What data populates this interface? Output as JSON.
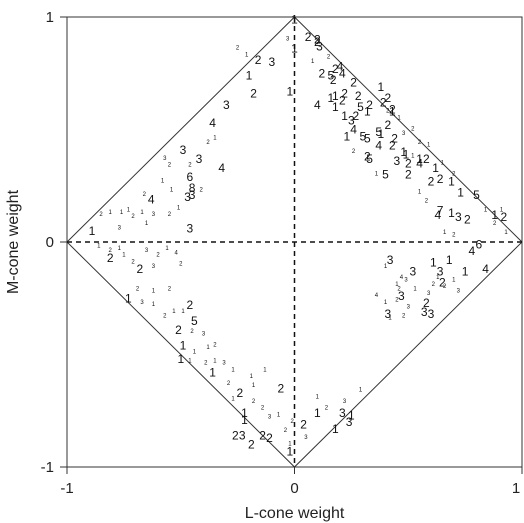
{
  "chart_data": {
    "type": "scatter",
    "xlabel": "L-cone weight",
    "ylabel": "M-cone weight",
    "xlim": [
      -1,
      1
    ],
    "ylim": [
      -1,
      1
    ],
    "xticks": [
      "-1",
      "0",
      "1"
    ],
    "yticks": [
      "-1",
      "0",
      "1"
    ],
    "reference_lines": {
      "diamond": "|L| + |M| = 1",
      "dashed_axes": "x=0, y=0"
    },
    "points_large": [
      {
        "x": 0.0,
        "y": 0.99,
        "label": "1"
      },
      {
        "x": 0.06,
        "y": 0.91,
        "label": "2"
      },
      {
        "x": 0.11,
        "y": 0.87,
        "label": "3"
      },
      {
        "x": 0.1,
        "y": 0.9,
        "label": "2"
      },
      {
        "x": 0.0,
        "y": 0.86,
        "label": "1"
      },
      {
        "x": -0.1,
        "y": 0.8,
        "label": "3"
      },
      {
        "x": -0.16,
        "y": 0.81,
        "label": "2"
      },
      {
        "x": -0.2,
        "y": 0.74,
        "label": "1"
      },
      {
        "x": -0.18,
        "y": 0.66,
        "label": "2"
      },
      {
        "x": -0.3,
        "y": 0.61,
        "label": "3"
      },
      {
        "x": -0.36,
        "y": 0.53,
        "label": "4"
      },
      {
        "x": -0.02,
        "y": 0.67,
        "label": "1"
      },
      {
        "x": 0.1,
        "y": 0.61,
        "label": "4"
      },
      {
        "x": 0.17,
        "y": 0.72,
        "label": "2"
      },
      {
        "x": 0.28,
        "y": 0.65,
        "label": "2"
      },
      {
        "x": 0.38,
        "y": 0.69,
        "label": "1"
      },
      {
        "x": 0.41,
        "y": 0.64,
        "label": "2"
      },
      {
        "x": 0.43,
        "y": 0.58,
        "label": "1"
      },
      {
        "x": 0.38,
        "y": 0.48,
        "label": "1"
      },
      {
        "x": 0.43,
        "y": 0.43,
        "label": "2"
      },
      {
        "x": 0.48,
        "y": 0.4,
        "label": "1"
      },
      {
        "x": 0.5,
        "y": 0.35,
        "label": "2"
      },
      {
        "x": 0.58,
        "y": 0.37,
        "label": "2"
      },
      {
        "x": 0.62,
        "y": 0.33,
        "label": "1"
      },
      {
        "x": 0.6,
        "y": 0.27,
        "label": "2"
      },
      {
        "x": 0.69,
        "y": 0.27,
        "label": "1"
      },
      {
        "x": 0.73,
        "y": 0.22,
        "label": "1"
      },
      {
        "x": 0.8,
        "y": 0.21,
        "label": "5"
      },
      {
        "x": 0.92,
        "y": 0.11,
        "label": "2"
      },
      {
        "x": 0.88,
        "y": 0.12,
        "label": "1"
      },
      {
        "x": 0.69,
        "y": 0.13,
        "label": "1"
      },
      {
        "x": 0.64,
        "y": 0.14,
        "label": "7"
      },
      {
        "x": 0.76,
        "y": 0.1,
        "label": "2"
      },
      {
        "x": 0.26,
        "y": 0.5,
        "label": "4"
      },
      {
        "x": 0.23,
        "y": 0.47,
        "label": "1"
      },
      {
        "x": 0.3,
        "y": 0.47,
        "label": "5"
      },
      {
        "x": 0.37,
        "y": 0.43,
        "label": "4"
      },
      {
        "x": 0.33,
        "y": 0.37,
        "label": "5"
      },
      {
        "x": 0.49,
        "y": 0.39,
        "label": "1"
      },
      {
        "x": 0.18,
        "y": 0.6,
        "label": "1"
      },
      {
        "x": 0.4,
        "y": 0.3,
        "label": "5"
      },
      {
        "x": 0.32,
        "y": 0.38,
        "label": "2"
      },
      {
        "x": 0.63,
        "y": 0.12,
        "label": "4"
      },
      {
        "x": 0.72,
        "y": 0.11,
        "label": "3"
      },
      {
        "x": 0.5,
        "y": 0.3,
        "label": "2"
      },
      {
        "x": 0.55,
        "y": 0.37,
        "label": "1"
      },
      {
        "x": 0.64,
        "y": 0.28,
        "label": "2"
      },
      {
        "x": 0.25,
        "y": 0.54,
        "label": "3"
      },
      {
        "x": 0.22,
        "y": 0.56,
        "label": "1"
      },
      {
        "x": 0.27,
        "y": 0.56,
        "label": "2"
      },
      {
        "x": 0.32,
        "y": 0.58,
        "label": "1"
      },
      {
        "x": 0.55,
        "y": 0.35,
        "label": "4"
      },
      {
        "x": 0.44,
        "y": 0.46,
        "label": "2"
      },
      {
        "x": 0.37,
        "y": 0.49,
        "label": "5"
      },
      {
        "x": 0.21,
        "y": 0.63,
        "label": "2"
      },
      {
        "x": 0.18,
        "y": 0.65,
        "label": "1"
      },
      {
        "x": 0.12,
        "y": 0.75,
        "label": "2"
      },
      {
        "x": 0.16,
        "y": 0.74,
        "label": "5"
      },
      {
        "x": 0.21,
        "y": 0.75,
        "label": "4"
      },
      {
        "x": 0.32,
        "y": 0.46,
        "label": "5"
      },
      {
        "x": 0.45,
        "y": 0.36,
        "label": "3"
      },
      {
        "x": 0.1,
        "y": 0.89,
        "label": "2"
      },
      {
        "x": 0.18,
        "y": 0.77,
        "label": "2"
      },
      {
        "x": 0.2,
        "y": 0.78,
        "label": "4"
      },
      {
        "x": 0.26,
        "y": 0.71,
        "label": "2"
      },
      {
        "x": 0.33,
        "y": 0.61,
        "label": "2"
      },
      {
        "x": 0.16,
        "y": 0.64,
        "label": "1"
      },
      {
        "x": 0.22,
        "y": 0.66,
        "label": "2"
      },
      {
        "x": 0.29,
        "y": 0.6,
        "label": "5"
      },
      {
        "x": 0.41,
        "y": 0.52,
        "label": "2"
      },
      {
        "x": 0.39,
        "y": 0.62,
        "label": "2"
      },
      {
        "x": 0.43,
        "y": 0.59,
        "label": "2"
      },
      {
        "x": -0.49,
        "y": 0.41,
        "label": "3"
      },
      {
        "x": -0.42,
        "y": 0.37,
        "label": "3"
      },
      {
        "x": -0.32,
        "y": 0.33,
        "label": "4"
      },
      {
        "x": -0.46,
        "y": 0.29,
        "label": "6"
      },
      {
        "x": -0.45,
        "y": 0.24,
        "label": "8"
      },
      {
        "x": -0.47,
        "y": 0.2,
        "label": "3"
      },
      {
        "x": -0.63,
        "y": 0.19,
        "label": "4"
      },
      {
        "x": -0.45,
        "y": 0.21,
        "label": "3"
      },
      {
        "x": -0.46,
        "y": 0.06,
        "label": "3"
      },
      {
        "x": -0.89,
        "y": 0.05,
        "label": "1"
      },
      {
        "x": -0.81,
        "y": -0.07,
        "label": "2"
      },
      {
        "x": -0.68,
        "y": -0.12,
        "label": "2"
      },
      {
        "x": -0.73,
        "y": -0.25,
        "label": "1"
      },
      {
        "x": -0.46,
        "y": -0.28,
        "label": "2"
      },
      {
        "x": -0.44,
        "y": -0.35,
        "label": "5"
      },
      {
        "x": -0.51,
        "y": -0.39,
        "label": "2"
      },
      {
        "x": -0.49,
        "y": -0.46,
        "label": "1"
      },
      {
        "x": -0.5,
        "y": -0.52,
        "label": "1"
      },
      {
        "x": -0.36,
        "y": -0.58,
        "label": "1"
      },
      {
        "x": -0.24,
        "y": -0.67,
        "label": "2"
      },
      {
        "x": -0.06,
        "y": -0.65,
        "label": "2"
      },
      {
        "x": -0.22,
        "y": -0.79,
        "label": "1"
      },
      {
        "x": -0.23,
        "y": -0.86,
        "label": "3"
      },
      {
        "x": -0.14,
        "y": -0.86,
        "label": "2"
      },
      {
        "x": -0.11,
        "y": -0.87,
        "label": "2"
      },
      {
        "x": -0.19,
        "y": -0.9,
        "label": "2"
      },
      {
        "x": -0.02,
        "y": -0.93,
        "label": "1"
      },
      {
        "x": 0.1,
        "y": -0.76,
        "label": "1"
      },
      {
        "x": 0.21,
        "y": -0.76,
        "label": "3"
      },
      {
        "x": 0.25,
        "y": -0.77,
        "label": "1"
      },
      {
        "x": 0.18,
        "y": -0.83,
        "label": "1"
      },
      {
        "x": 0.24,
        "y": -0.8,
        "label": "3"
      },
      {
        "x": 0.04,
        "y": -0.81,
        "label": "2"
      },
      {
        "x": 0.42,
        "y": -0.08,
        "label": "3"
      },
      {
        "x": 0.52,
        "y": -0.13,
        "label": "3"
      },
      {
        "x": 0.61,
        "y": -0.09,
        "label": "1"
      },
      {
        "x": 0.64,
        "y": -0.13,
        "label": "3"
      },
      {
        "x": 0.68,
        "y": -0.08,
        "label": "1"
      },
      {
        "x": 0.75,
        "y": -0.13,
        "label": "1"
      },
      {
        "x": 0.84,
        "y": -0.12,
        "label": "4"
      },
      {
        "x": 0.78,
        "y": -0.04,
        "label": "4"
      },
      {
        "x": 0.81,
        "y": -0.01,
        "label": "6"
      },
      {
        "x": 0.65,
        "y": -0.18,
        "label": "2"
      },
      {
        "x": 0.47,
        "y": -0.24,
        "label": "3"
      },
      {
        "x": 0.41,
        "y": -0.32,
        "label": "3"
      },
      {
        "x": 0.57,
        "y": -0.31,
        "label": "3"
      },
      {
        "x": 0.58,
        "y": -0.27,
        "label": "2"
      },
      {
        "x": 0.6,
        "y": -0.32,
        "label": "3"
      },
      {
        "x": -0.22,
        "y": -0.76,
        "label": "1"
      },
      {
        "x": -0.26,
        "y": -0.86,
        "label": "2"
      }
    ],
    "points_small": [
      {
        "x": -0.57,
        "y": 0.37,
        "label": "3"
      },
      {
        "x": -0.55,
        "y": 0.34,
        "label": "2"
      },
      {
        "x": -0.58,
        "y": 0.27,
        "label": "1"
      },
      {
        "x": -0.66,
        "y": 0.21,
        "label": "2"
      },
      {
        "x": -0.73,
        "y": 0.14,
        "label": "1"
      },
      {
        "x": -0.76,
        "y": 0.13,
        "label": "1"
      },
      {
        "x": -0.85,
        "y": 0.12,
        "label": "2"
      },
      {
        "x": -0.81,
        "y": 0.13,
        "label": "1"
      },
      {
        "x": -0.77,
        "y": 0.06,
        "label": "3"
      },
      {
        "x": -0.67,
        "y": 0.13,
        "label": "1"
      },
      {
        "x": -0.62,
        "y": 0.12,
        "label": "3"
      },
      {
        "x": -0.55,
        "y": 0.12,
        "label": "2"
      },
      {
        "x": -0.65,
        "y": 0.08,
        "label": "1"
      },
      {
        "x": -0.71,
        "y": 0.11,
        "label": "2"
      },
      {
        "x": -0.81,
        "y": -0.04,
        "label": "2"
      },
      {
        "x": -0.77,
        "y": -0.03,
        "label": "1"
      },
      {
        "x": -0.75,
        "y": -0.06,
        "label": "1"
      },
      {
        "x": -0.71,
        "y": -0.09,
        "label": "2"
      },
      {
        "x": -0.65,
        "y": -0.04,
        "label": "3"
      },
      {
        "x": -0.6,
        "y": -0.06,
        "label": "2"
      },
      {
        "x": -0.56,
        "y": -0.03,
        "label": "1"
      },
      {
        "x": -0.52,
        "y": -0.05,
        "label": "4"
      },
      {
        "x": -0.5,
        "y": -0.1,
        "label": "2"
      },
      {
        "x": -0.62,
        "y": -0.11,
        "label": "3"
      },
      {
        "x": -0.86,
        "y": -0.02,
        "label": "1"
      },
      {
        "x": -0.69,
        "y": -0.21,
        "label": "2"
      },
      {
        "x": -0.62,
        "y": -0.22,
        "label": "1"
      },
      {
        "x": -0.55,
        "y": -0.21,
        "label": "2"
      },
      {
        "x": -0.62,
        "y": -0.28,
        "label": "1"
      },
      {
        "x": -0.67,
        "y": -0.27,
        "label": "3"
      },
      {
        "x": -0.57,
        "y": -0.33,
        "label": "2"
      },
      {
        "x": -0.53,
        "y": -0.31,
        "label": "1"
      },
      {
        "x": -0.49,
        "y": -0.31,
        "label": "1"
      },
      {
        "x": -0.45,
        "y": -0.4,
        "label": "2"
      },
      {
        "x": -0.4,
        "y": -0.41,
        "label": "3"
      },
      {
        "x": -0.38,
        "y": -0.47,
        "label": "1"
      },
      {
        "x": -0.35,
        "y": -0.46,
        "label": "2"
      },
      {
        "x": -0.44,
        "y": -0.49,
        "label": "1"
      },
      {
        "x": -0.46,
        "y": -0.53,
        "label": "1"
      },
      {
        "x": -0.39,
        "y": -0.54,
        "label": "2"
      },
      {
        "x": -0.35,
        "y": -0.53,
        "label": "1"
      },
      {
        "x": -0.31,
        "y": -0.54,
        "label": "3"
      },
      {
        "x": -0.27,
        "y": -0.57,
        "label": "1"
      },
      {
        "x": -0.29,
        "y": -0.63,
        "label": "2"
      },
      {
        "x": -0.27,
        "y": -0.7,
        "label": "1"
      },
      {
        "x": -0.18,
        "y": -0.71,
        "label": "2"
      },
      {
        "x": -0.18,
        "y": -0.64,
        "label": "1"
      },
      {
        "x": -0.14,
        "y": -0.74,
        "label": "2"
      },
      {
        "x": -0.11,
        "y": -0.78,
        "label": "3"
      },
      {
        "x": -0.07,
        "y": -0.77,
        "label": "1"
      },
      {
        "x": -0.04,
        "y": -0.84,
        "label": "2"
      },
      {
        "x": -0.02,
        "y": -0.9,
        "label": "1"
      },
      {
        "x": -0.19,
        "y": -0.6,
        "label": "1"
      },
      {
        "x": -0.13,
        "y": -0.57,
        "label": "1"
      },
      {
        "x": -0.38,
        "y": 0.44,
        "label": "2"
      },
      {
        "x": -0.35,
        "y": 0.46,
        "label": "1"
      },
      {
        "x": -0.46,
        "y": 0.34,
        "label": "2"
      },
      {
        "x": -0.54,
        "y": 0.23,
        "label": "1"
      },
      {
        "x": -0.41,
        "y": 0.23,
        "label": "2"
      },
      {
        "x": -0.51,
        "y": 0.15,
        "label": "1"
      },
      {
        "x": -0.25,
        "y": 0.86,
        "label": "2"
      },
      {
        "x": -0.21,
        "y": 0.83,
        "label": "1"
      },
      {
        "x": -0.03,
        "y": 0.9,
        "label": "3"
      },
      {
        "x": 0.08,
        "y": 0.8,
        "label": "1"
      },
      {
        "x": 0.15,
        "y": 0.82,
        "label": "2"
      },
      {
        "x": 0.41,
        "y": 0.58,
        "label": "2"
      },
      {
        "x": 0.46,
        "y": 0.55,
        "label": "1"
      },
      {
        "x": 0.52,
        "y": 0.5,
        "label": "2"
      },
      {
        "x": 0.59,
        "y": 0.43,
        "label": "1"
      },
      {
        "x": 0.48,
        "y": 0.48,
        "label": "3"
      },
      {
        "x": 0.55,
        "y": 0.44,
        "label": "2"
      },
      {
        "x": 0.65,
        "y": 0.35,
        "label": "1"
      },
      {
        "x": 0.7,
        "y": 0.3,
        "label": "2"
      },
      {
        "x": 0.52,
        "y": 0.38,
        "label": "1"
      },
      {
        "x": 0.26,
        "y": 0.4,
        "label": "2"
      },
      {
        "x": 0.36,
        "y": 0.3,
        "label": "1"
      },
      {
        "x": 0.55,
        "y": 0.22,
        "label": "1"
      },
      {
        "x": 0.58,
        "y": 0.18,
        "label": "2"
      },
      {
        "x": 0.84,
        "y": 0.14,
        "label": "1"
      },
      {
        "x": 0.88,
        "y": 0.08,
        "label": "2"
      },
      {
        "x": 0.93,
        "y": 0.04,
        "label": "1"
      },
      {
        "x": 0.7,
        "y": 0.03,
        "label": "2"
      },
      {
        "x": 0.66,
        "y": 0.04,
        "label": "1"
      },
      {
        "x": 0.91,
        "y": 0.14,
        "label": "1"
      },
      {
        "x": 0.45,
        "y": -0.19,
        "label": "1"
      },
      {
        "x": 0.46,
        "y": -0.21,
        "label": "2"
      },
      {
        "x": 0.49,
        "y": -0.17,
        "label": "3"
      },
      {
        "x": 0.47,
        "y": -0.16,
        "label": "4"
      },
      {
        "x": 0.36,
        "y": -0.24,
        "label": "4"
      },
      {
        "x": 0.4,
        "y": -0.27,
        "label": "1"
      },
      {
        "x": 0.45,
        "y": -0.26,
        "label": "2"
      },
      {
        "x": 0.5,
        "y": -0.29,
        "label": "3"
      },
      {
        "x": 0.42,
        "y": -0.34,
        "label": "1"
      },
      {
        "x": 0.48,
        "y": -0.33,
        "label": "2"
      },
      {
        "x": 0.53,
        "y": -0.21,
        "label": "1"
      },
      {
        "x": 0.59,
        "y": -0.23,
        "label": "3"
      },
      {
        "x": 0.61,
        "y": -0.19,
        "label": "2"
      },
      {
        "x": 0.63,
        "y": -0.16,
        "label": "1"
      },
      {
        "x": 0.66,
        "y": -0.2,
        "label": "2"
      },
      {
        "x": 0.7,
        "y": -0.17,
        "label": "1"
      },
      {
        "x": 0.4,
        "y": -0.11,
        "label": "1"
      },
      {
        "x": 0.72,
        "y": -0.22,
        "label": "3"
      },
      {
        "x": 0.22,
        "y": -0.71,
        "label": "3"
      },
      {
        "x": 0.29,
        "y": -0.66,
        "label": "1"
      },
      {
        "x": 0.14,
        "y": -0.74,
        "label": "2"
      },
      {
        "x": 0.1,
        "y": -0.69,
        "label": "1"
      },
      {
        "x": 0.05,
        "y": -0.87,
        "label": "3"
      },
      {
        "x": -0.01,
        "y": -0.8,
        "label": "2"
      }
    ]
  }
}
